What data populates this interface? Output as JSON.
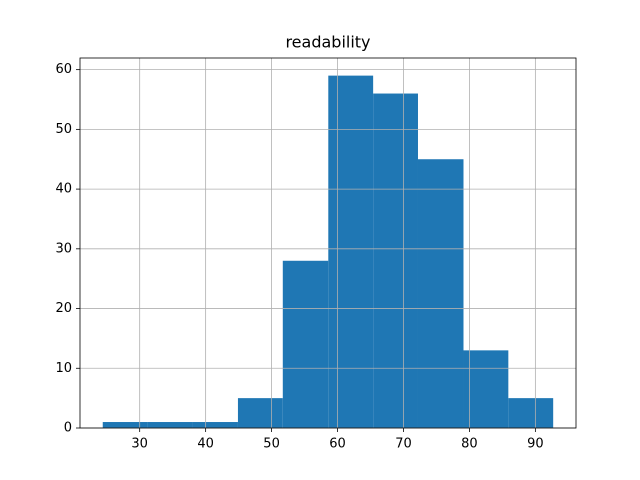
{
  "chart_data": {
    "type": "histogram",
    "title": "readability",
    "bins": [
      24.4,
      31.2,
      38.0,
      44.9,
      51.7,
      58.6,
      65.4,
      72.2,
      79.1,
      85.9,
      92.7
    ],
    "values": [
      1,
      1,
      1,
      5,
      28,
      59,
      56,
      45,
      13,
      5
    ],
    "color": "#1f77b4",
    "xlim": [
      20.95,
      96.16
    ],
    "xticks": [
      30,
      40,
      50,
      60,
      70,
      80,
      90
    ],
    "ylim": [
      0,
      61.95
    ],
    "yticks": [
      0,
      10,
      20,
      30,
      40,
      50,
      60
    ],
    "grid": true
  }
}
